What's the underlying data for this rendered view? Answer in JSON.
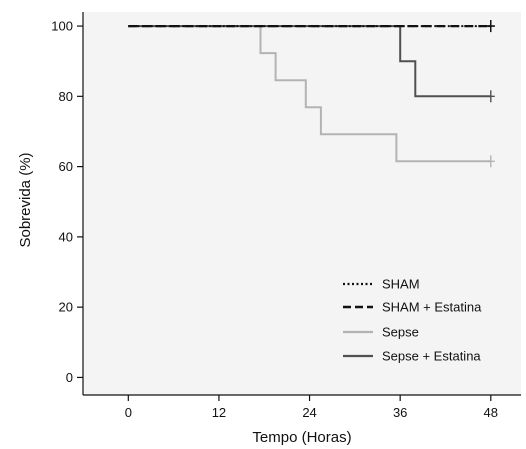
{
  "chart_data": {
    "type": "line",
    "step": true,
    "title": "",
    "xlabel": "Tempo (Horas)",
    "ylabel": "Sobrevida (%)",
    "xlim": [
      -6,
      52
    ],
    "ylim": [
      -5,
      104
    ],
    "x_ticks": [
      0,
      12,
      24,
      36,
      48
    ],
    "y_ticks": [
      0,
      20,
      40,
      60,
      80,
      100
    ],
    "plot_background": "#f4f4f4",
    "grid": false,
    "legend_position": "bottom-right",
    "series": [
      {
        "name": "SHAM",
        "color": "#111111",
        "dash": "dotted",
        "points": [
          [
            0,
            100
          ],
          [
            48,
            100
          ]
        ],
        "censor": [
          [
            48,
            100
          ]
        ]
      },
      {
        "name": "SHAM + Estatina",
        "color": "#111111",
        "dash": "dashed",
        "points": [
          [
            0,
            100
          ],
          [
            48,
            100
          ]
        ],
        "censor": [
          [
            48,
            100
          ]
        ]
      },
      {
        "name": "Sepse",
        "color": "#b3b3b3",
        "dash": "solid",
        "points": [
          [
            0,
            100
          ],
          [
            17.5,
            100
          ],
          [
            17.5,
            92.3
          ],
          [
            19.5,
            92.3
          ],
          [
            19.5,
            84.6
          ],
          [
            23.5,
            84.6
          ],
          [
            23.5,
            76.9
          ],
          [
            25.5,
            76.9
          ],
          [
            25.5,
            69.2
          ],
          [
            35.5,
            69.2
          ],
          [
            35.5,
            61.5
          ],
          [
            48,
            61.5
          ]
        ],
        "censor": [
          [
            48,
            61.5
          ]
        ]
      },
      {
        "name": "Sepse + Estatina",
        "color": "#505050",
        "dash": "solid",
        "points": [
          [
            0,
            100
          ],
          [
            36,
            100
          ],
          [
            36,
            90
          ],
          [
            38,
            90
          ],
          [
            38,
            80
          ],
          [
            48,
            80
          ]
        ],
        "censor": [
          [
            48,
            80
          ]
        ]
      }
    ]
  }
}
